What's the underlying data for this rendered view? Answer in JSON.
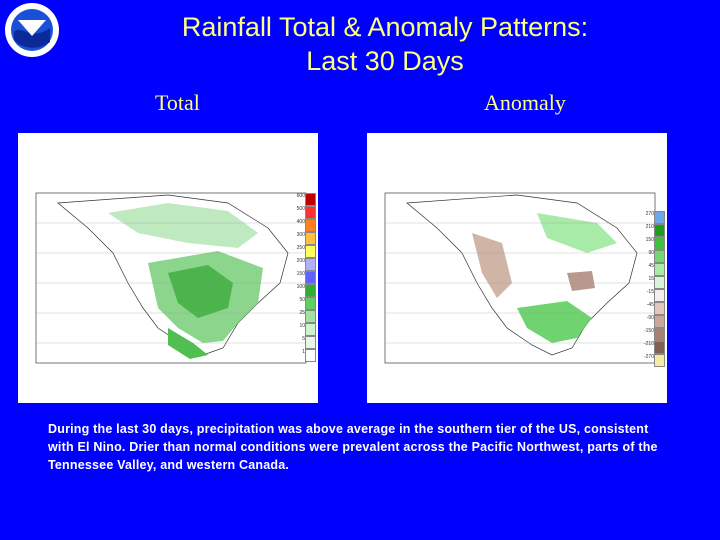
{
  "logo": {
    "icon": "noaa-logo-icon",
    "text": "NOAA"
  },
  "title": {
    "line1": "Rainfall Total & Anomaly Patterns:",
    "line2": "Last 30 Days"
  },
  "panels": {
    "total": {
      "label": "Total",
      "legend": [
        "600",
        "500",
        "400",
        "300",
        "250",
        "200",
        "150",
        "100",
        "50",
        "25",
        "10",
        "5",
        "1"
      ],
      "colors": [
        "#c00000",
        "#ff3030",
        "#ff8020",
        "#ffc040",
        "#ffff60",
        "#b0b0ff",
        "#6060ff",
        "#2fae2f",
        "#5fcf5f",
        "#9fe49f",
        "#cff2cf",
        "#e6f9e6",
        "#ffffff"
      ]
    },
    "anomaly": {
      "label": "Anomaly",
      "legend": [
        "270",
        "210",
        "150",
        "90",
        "45",
        "15",
        "-15",
        "-45",
        "-90",
        "-150",
        "-210",
        "-270"
      ],
      "colors": [
        "#6fa8e8",
        "#1e9e1e",
        "#3fbf3f",
        "#6fd86f",
        "#a8eaa8",
        "#d8f5d8",
        "#f5eeee",
        "#e0c8c0",
        "#c8a898",
        "#a88070",
        "#806050",
        "#f5e9a8"
      ]
    }
  },
  "caption": "During the last 30 days, precipitation was above average in the southern tier of the US, consistent with El Nino. Drier than normal conditions were prevalent across the Pacific Northwest, parts of the Tennessee Valley, and western Canada."
}
